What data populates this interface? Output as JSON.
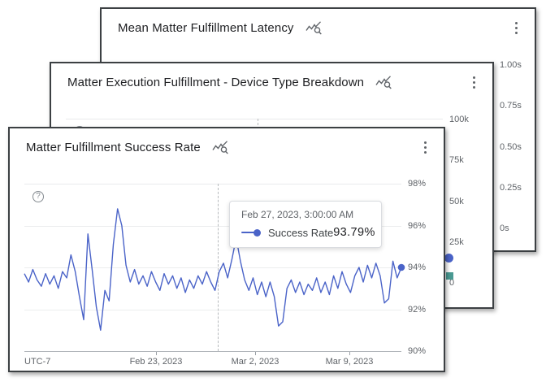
{
  "icons": {
    "stats_muted": "query-stats-off",
    "menu": "kebab-vertical",
    "help_glyph": "?"
  },
  "colors": {
    "line": "#4a63c8",
    "teal_marker": "#4a9a93",
    "border": "#3c4043"
  },
  "cards": {
    "back": {
      "title": "Mean Matter Fulfillment Latency",
      "y_axis": [
        "1.00s",
        "0.75s",
        "0.50s",
        "0.25s",
        "0s"
      ]
    },
    "middle": {
      "title": "Matter Execution Fulfillment - Device Type Breakdown",
      "y_axis": [
        "100k",
        "75k",
        "50k",
        "25k",
        "0"
      ]
    },
    "front": {
      "title": "Matter Fulfillment Success Rate",
      "y_axis": [
        "98%",
        "96%",
        "94%",
        "92%",
        "90%"
      ],
      "x_axis": {
        "timezone": "UTC-7",
        "ticks": [
          "Feb 23, 2023",
          "Mar 2, 2023",
          "Mar 9, 2023"
        ]
      },
      "tooltip": {
        "timestamp": "Feb 27, 2023, 3:00:00 AM",
        "series": "Success Rate",
        "value": "93.79%"
      }
    }
  },
  "chart_data": {
    "type": "line",
    "title": "Matter Fulfillment Success Rate",
    "timezone": "UTC-7",
    "x_ticks": [
      "Feb 23, 2023",
      "Mar 2, 2023",
      "Mar 9, 2023"
    ],
    "ylim": [
      90,
      98
    ],
    "y_ticks": [
      "90%",
      "92%",
      "94%",
      "96%",
      "98%"
    ],
    "grid": true,
    "legend_position": "tooltip",
    "highlighted_point": {
      "label": "Feb 27, 2023, 3:00:00 AM",
      "series": "Success Rate",
      "value": 93.79
    },
    "series": [
      {
        "name": "Success Rate",
        "color": "#4a63c8",
        "values": [
          93.7,
          93.3,
          93.9,
          93.4,
          93.1,
          93.7,
          93.2,
          93.6,
          93.0,
          93.8,
          93.5,
          94.6,
          93.8,
          92.6,
          91.5,
          95.6,
          93.9,
          92.1,
          91.0,
          92.9,
          92.4,
          95.1,
          96.8,
          96.0,
          94.1,
          93.3,
          93.9,
          93.2,
          93.6,
          93.1,
          93.8,
          93.3,
          92.9,
          93.7,
          93.2,
          93.6,
          93.0,
          93.5,
          92.8,
          93.4,
          93.0,
          93.6,
          93.2,
          93.8,
          93.3,
          92.9,
          93.79,
          94.2,
          93.5,
          94.4,
          95.4,
          94.3,
          93.4,
          92.9,
          93.5,
          92.7,
          93.3,
          92.6,
          93.3,
          92.6,
          91.2,
          91.4,
          93.0,
          93.4,
          92.8,
          93.3,
          92.7,
          93.2,
          92.9,
          93.5,
          92.8,
          93.3,
          92.7,
          93.6,
          93.0,
          93.8,
          93.2,
          92.8,
          93.6,
          94.0,
          93.3,
          94.1,
          93.5,
          94.2,
          93.6,
          92.3,
          92.5,
          94.3,
          93.5,
          94.0
        ]
      }
    ],
    "other_cards_axes": [
      {
        "card": "Mean Matter Fulfillment Latency",
        "y_ticks": [
          "0s",
          "0.25s",
          "0.50s",
          "0.75s",
          "1.00s"
        ]
      },
      {
        "card": "Matter Execution Fulfillment - Device Type Breakdown",
        "y_ticks": [
          "0",
          "25k",
          "50k",
          "75k",
          "100k"
        ]
      }
    ]
  }
}
